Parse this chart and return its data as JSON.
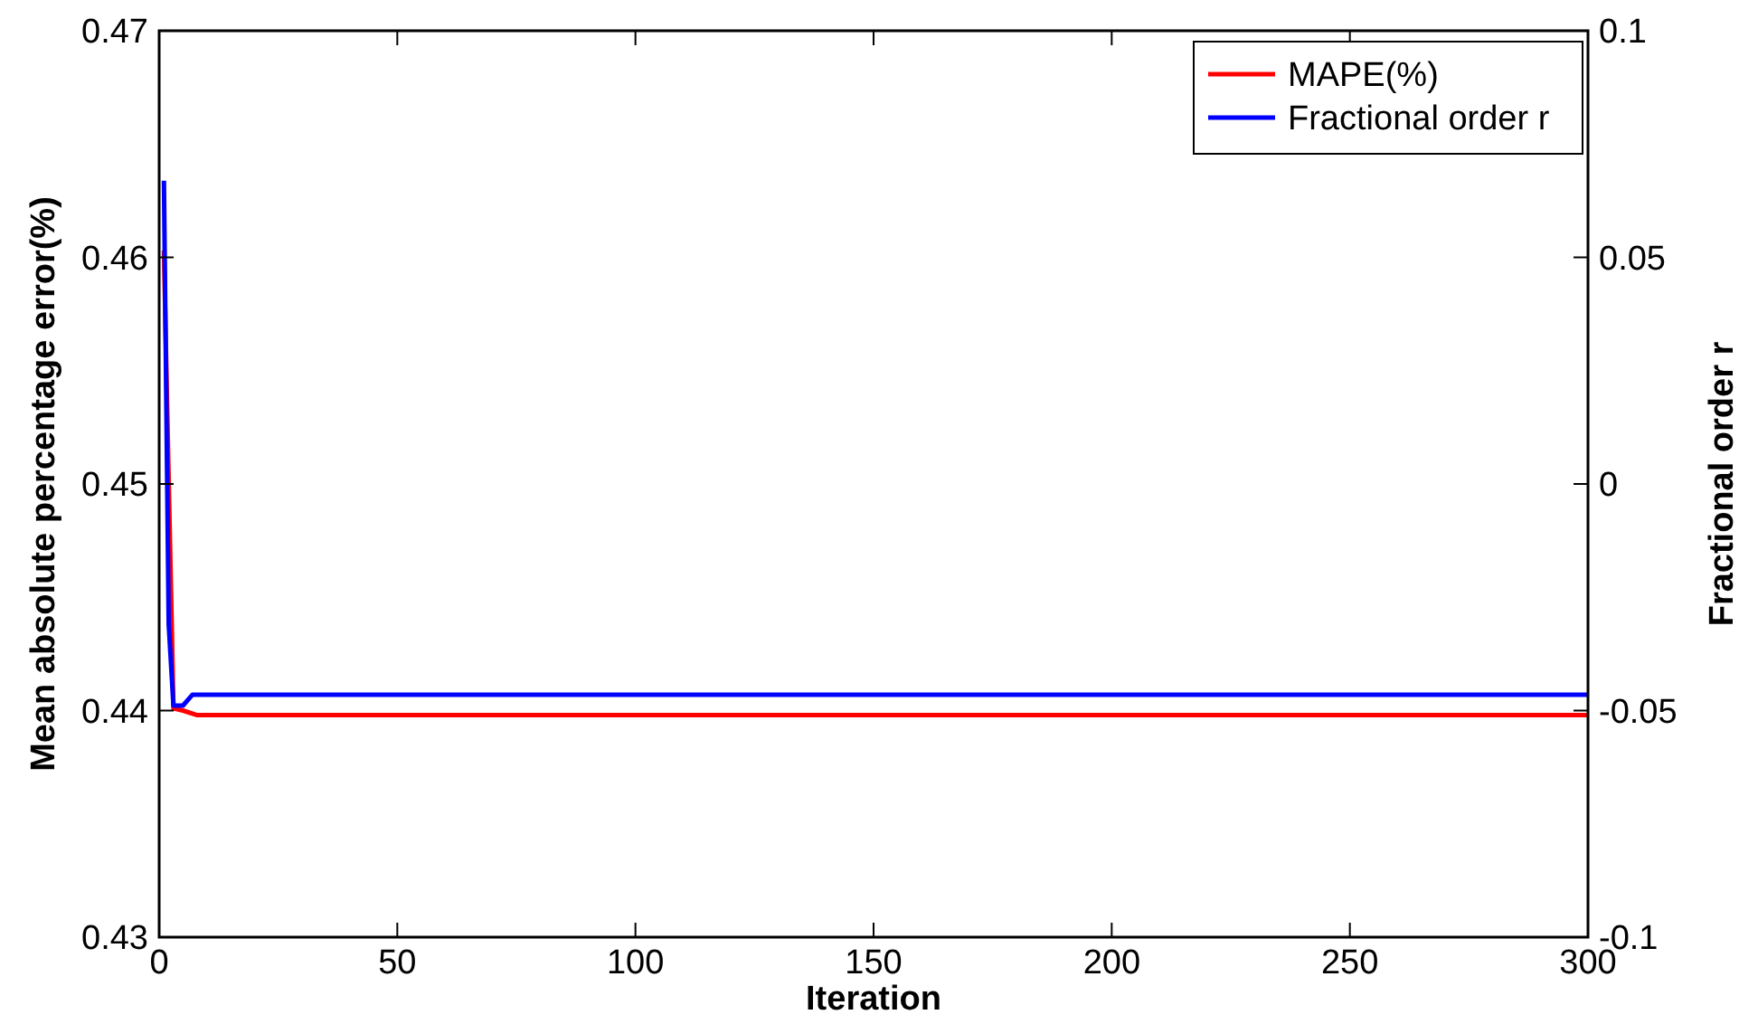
{
  "chart_data": {
    "type": "line",
    "xlabel": "Iteration",
    "ylabel": "Mean absolute percentage error(%)",
    "y2label": "Fractional order r",
    "xlim": [
      0,
      300
    ],
    "xticks": [
      0,
      50,
      100,
      150,
      200,
      250,
      300
    ],
    "ylim": [
      0.43,
      0.47
    ],
    "yticks": [
      {
        "value": 0.43,
        "label": "0.43"
      },
      {
        "value": 0.44,
        "label": "0.44"
      },
      {
        "value": 0.45,
        "label": "0.45"
      },
      {
        "value": 0.46,
        "label": "0.46"
      },
      {
        "value": 0.47,
        "label": "0.47"
      }
    ],
    "y2lim": [
      -0.1,
      0.1
    ],
    "y2ticks": [
      -0.1,
      -0.05,
      0,
      0.05,
      0.1
    ],
    "legend": "top right",
    "grid": false,
    "marker": "none",
    "line_style": "solid",
    "series": [
      {
        "name": "MAPE(%)",
        "color": "#ff0000",
        "x": [
          1,
          3,
          5,
          8,
          300
        ],
        "values": [
          0.4603,
          0.4401,
          0.44,
          0.4398,
          0.4398
        ]
      },
      {
        "name": "Fractional order r",
        "color": "#0000ff",
        "axis": "y2",
        "x": [
          1,
          2,
          3,
          5,
          7,
          300
        ],
        "values": [
          0.0669,
          -0.0309,
          -0.0489,
          -0.0489,
          -0.0465,
          -0.0465
        ]
      }
    ]
  }
}
